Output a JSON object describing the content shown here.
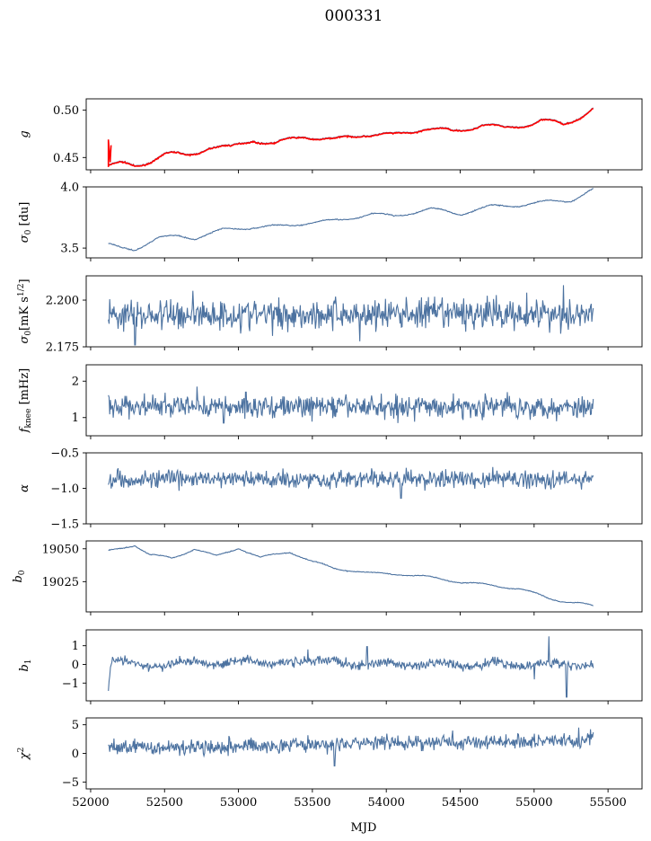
{
  "title": "000331",
  "colors": {
    "series": "#4c72a0",
    "fit": "#ff0000"
  },
  "xaxis": {
    "label": "MJD",
    "range": [
      51970,
      55730
    ],
    "ticks": [
      52000,
      52500,
      53000,
      53500,
      54000,
      54500,
      55000,
      55500
    ],
    "tick_labels": [
      "52000",
      "52500",
      "53000",
      "53500",
      "54000",
      "54500",
      "55000",
      "55500"
    ],
    "data_start": 52120,
    "data_end": 55400
  },
  "chart_data": [
    {
      "type": "line",
      "ylabel_main": "g",
      "ylabel_sub": "",
      "ylim": [
        0.437,
        0.512
      ],
      "yticks": [
        0.45,
        0.5
      ],
      "ytick_labels": [
        "0.45",
        "0.50"
      ],
      "trend": [
        [
          52120,
          0.442
        ],
        [
          52200,
          0.443
        ],
        [
          52300,
          0.441
        ],
        [
          52500,
          0.454
        ],
        [
          52650,
          0.452
        ],
        [
          52800,
          0.462
        ],
        [
          52950,
          0.46
        ],
        [
          53100,
          0.47
        ],
        [
          53250,
          0.464
        ],
        [
          53450,
          0.474
        ],
        [
          53650,
          0.468
        ],
        [
          53850,
          0.476
        ],
        [
          54050,
          0.473
        ],
        [
          54250,
          0.482
        ],
        [
          54450,
          0.477
        ],
        [
          54650,
          0.486
        ],
        [
          54800,
          0.48
        ],
        [
          55050,
          0.49
        ],
        [
          55200,
          0.484
        ],
        [
          55400,
          0.503
        ]
      ],
      "seasonal": {
        "amplitude": 0.003,
        "period": 365,
        "phase": 0.0
      },
      "noise": 0.0004,
      "fit_overlay": true
    },
    {
      "type": "line",
      "ylabel_main": "σ",
      "ylabel_sub": "0",
      "ylabel_unit": " [du]",
      "ylim": [
        3.42,
        4.0
      ],
      "yticks": [
        3.5,
        4.0
      ],
      "ytick_labels": [
        "3.5",
        "4.0"
      ],
      "trend": [
        [
          52120,
          3.53
        ],
        [
          52200,
          3.5
        ],
        [
          52300,
          3.49
        ],
        [
          52450,
          3.58
        ],
        [
          52600,
          3.6
        ],
        [
          52700,
          3.58
        ],
        [
          52900,
          3.65
        ],
        [
          53100,
          3.67
        ],
        [
          53300,
          3.68
        ],
        [
          53500,
          3.71
        ],
        [
          53700,
          3.73
        ],
        [
          53900,
          3.78
        ],
        [
          54050,
          3.76
        ],
        [
          54300,
          3.82
        ],
        [
          54500,
          3.78
        ],
        [
          54700,
          3.84
        ],
        [
          54900,
          3.85
        ],
        [
          55100,
          3.88
        ],
        [
          55250,
          3.89
        ],
        [
          55400,
          3.98
        ]
      ],
      "seasonal": {
        "amplitude": 0.012,
        "period": 365,
        "phase": 1.0
      },
      "noise": 0.003
    },
    {
      "type": "line",
      "ylabel_main": "σ",
      "ylabel_sub": "0",
      "ylabel_unit": "[mK s",
      "ylabel_sup": "1/2",
      "ylabel_close": "]",
      "ylim": [
        2.175,
        2.213
      ],
      "yticks": [
        2.175,
        2.2
      ],
      "ytick_labels": [
        "2.175",
        "2.200"
      ],
      "trend": [
        [
          52120,
          2.192
        ],
        [
          55400,
          2.193
        ]
      ],
      "seasonal": {
        "amplitude": 0.0,
        "period": 365,
        "phase": 0.0
      },
      "noise": 0.006,
      "spikes": [
        [
          52300,
          2.176
        ],
        [
          53820,
          2.178
        ],
        [
          55180,
          2.182
        ],
        [
          54950,
          2.204
        ],
        [
          55200,
          2.208
        ],
        [
          52690,
          2.205
        ]
      ]
    },
    {
      "type": "line",
      "ylabel_main": "f",
      "ylabel_sub": "knee",
      "ylabel_unit": " [mHz]",
      "ylim": [
        0.5,
        2.45
      ],
      "yticks": [
        1,
        2
      ],
      "ytick_labels": [
        "1",
        "2"
      ],
      "trend": [
        [
          52120,
          1.3
        ],
        [
          55400,
          1.3
        ]
      ],
      "seasonal": {
        "amplitude": 0.0,
        "period": 365,
        "phase": 0.0
      },
      "noise": 0.22,
      "spikes": [
        [
          52720,
          1.85
        ],
        [
          52900,
          0.85
        ],
        [
          53050,
          1.7
        ],
        [
          54080,
          0.85
        ],
        [
          54820,
          1.7
        ],
        [
          55150,
          0.9
        ]
      ]
    },
    {
      "type": "line",
      "ylabel_main": "α",
      "ylabel_sub": "",
      "ylim": [
        -1.5,
        -0.5
      ],
      "yticks": [
        -1.5,
        -1.0,
        -0.5
      ],
      "ytick_labels": [
        "−1.5",
        "−1.0",
        "−0.5"
      ],
      "trend": [
        [
          52120,
          -0.87
        ],
        [
          55400,
          -0.87
        ]
      ],
      "seasonal": {
        "amplitude": 0.0,
        "period": 365,
        "phase": 0.0
      },
      "noise": 0.09,
      "spikes": [
        [
          52200,
          -0.75
        ],
        [
          54720,
          -0.7
        ],
        [
          54100,
          -1.14
        ],
        [
          53300,
          -0.72
        ]
      ]
    },
    {
      "type": "line",
      "ylabel_main": "b",
      "ylabel_sub": "0",
      "ylim": [
        19002,
        19056
      ],
      "yticks": [
        19025,
        19050
      ],
      "ytick_labels": [
        "19025",
        "19050"
      ],
      "trend": [
        [
          52120,
          19048
        ],
        [
          52250,
          19052
        ],
        [
          52300,
          19053
        ],
        [
          52400,
          19045
        ],
        [
          52550,
          19043
        ],
        [
          52700,
          19050
        ],
        [
          52850,
          19044
        ],
        [
          53000,
          19051
        ],
        [
          53150,
          19043
        ],
        [
          53350,
          19048
        ],
        [
          53500,
          19040
        ],
        [
          53650,
          19035
        ],
        [
          53750,
          19034
        ],
        [
          53900,
          19031
        ],
        [
          54100,
          19031
        ],
        [
          54300,
          19028
        ],
        [
          54500,
          19025
        ],
        [
          54700,
          19022
        ],
        [
          54900,
          19020
        ],
        [
          55100,
          19012
        ],
        [
          55300,
          19009
        ],
        [
          55400,
          19006
        ]
      ],
      "seasonal": {
        "amplitude": 1.0,
        "period": 365,
        "phase": 2.0
      },
      "noise": 0.2
    },
    {
      "type": "line",
      "ylabel_main": "b",
      "ylabel_sub": "1",
      "ylim": [
        -1.95,
        1.85
      ],
      "yticks": [
        -1,
        0,
        1
      ],
      "ytick_labels": [
        "−1",
        "0",
        "1"
      ],
      "trend": [
        [
          52120,
          -1.3
        ],
        [
          52140,
          0.1
        ],
        [
          52300,
          0.1
        ],
        [
          52500,
          -0.2
        ],
        [
          52700,
          0.3
        ],
        [
          52900,
          -0.1
        ],
        [
          53050,
          0.4
        ],
        [
          53250,
          -0.1
        ],
        [
          53450,
          0.3
        ],
        [
          53700,
          0.05
        ],
        [
          54000,
          0.0
        ],
        [
          55400,
          0.0
        ]
      ],
      "seasonal": {
        "amplitude": 0.1,
        "period": 365,
        "phase": 0.5
      },
      "noise": 0.18,
      "spikes": [
        [
          53470,
          0.8
        ],
        [
          53870,
          0.95
        ],
        [
          55100,
          1.5
        ],
        [
          55220,
          -1.75
        ],
        [
          55000,
          -0.8
        ]
      ]
    },
    {
      "type": "line",
      "ylabel_main": "χ",
      "ylabel_sub": "",
      "ylabel_sup": "2",
      "ylim": [
        -6.2,
        6.2
      ],
      "yticks": [
        -5,
        0,
        5
      ],
      "ytick_labels": [
        "−5",
        "0",
        "5"
      ],
      "trend": [
        [
          52120,
          1.0
        ],
        [
          53000,
          1.3
        ],
        [
          54000,
          1.8
        ],
        [
          55400,
          2.3
        ]
      ],
      "seasonal": {
        "amplitude": 0.0,
        "period": 365,
        "phase": 0.0
      },
      "noise": 0.95,
      "spikes": [
        [
          53650,
          -2.2
        ],
        [
          55300,
          4.5
        ],
        [
          55380,
          4.2
        ],
        [
          54450,
          4.0
        ]
      ]
    }
  ]
}
